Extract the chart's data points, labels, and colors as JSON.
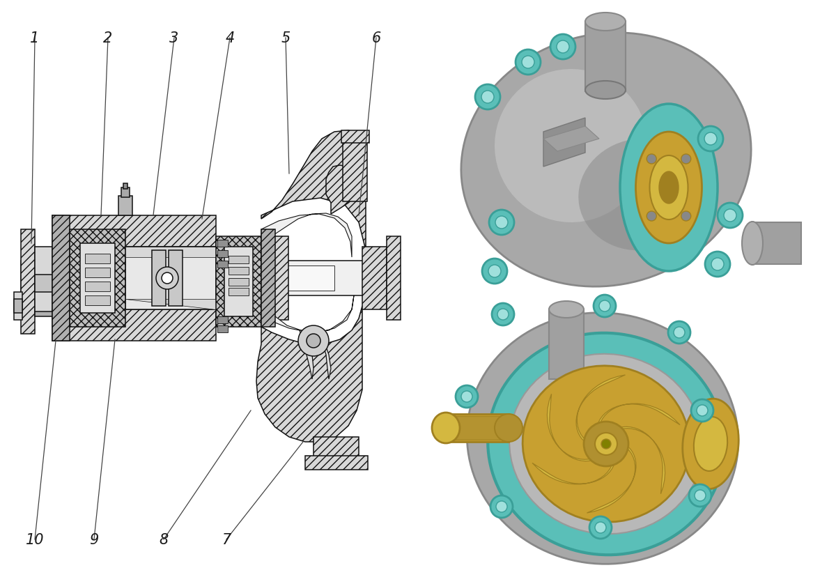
{
  "background_color": "#ffffff",
  "fig_width": 12.0,
  "fig_height": 8.29,
  "dpi": 100,
  "label_color": "#1a1a1a",
  "label_fontsize": 15,
  "line_color": "#111111",
  "lw": 1.1,
  "gray_fill": "#d8d8d8",
  "dark_gray_fill": "#b0b0b0",
  "hatch_fill": "#c8c8c8",
  "teal": "#5abfb8",
  "teal_dark": "#3a9f98",
  "gold": "#c8a030",
  "gold_dark": "#a08020",
  "gold_light": "#d4b840",
  "body_gray": "#a8a8a8",
  "body_light": "#c4c4c4"
}
